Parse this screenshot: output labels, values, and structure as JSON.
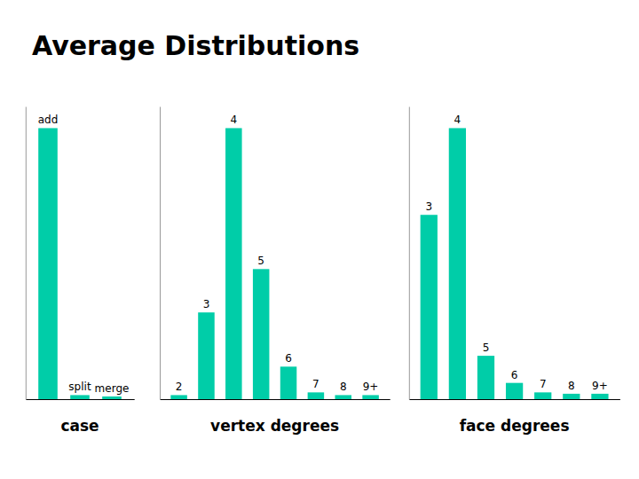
{
  "chart_data": [
    {
      "type": "bar",
      "title": "Average Distributions",
      "xlabel": "case",
      "categories": [
        "add",
        "split",
        "merge"
      ],
      "values": [
        100,
        1.5,
        1.0
      ],
      "color": "#00CDA8",
      "ylim": [
        0,
        108
      ],
      "tick_labels": false
    },
    {
      "type": "bar",
      "xlabel": "vertex degrees",
      "categories": [
        "2",
        "3",
        "4",
        "5",
        "6",
        "7",
        "8",
        "9+"
      ],
      "values": [
        1.5,
        32,
        100,
        48,
        12,
        2.5,
        1.5,
        1.5
      ],
      "color": "#00CDA8",
      "ylim": [
        0,
        108
      ],
      "tick_labels": false
    },
    {
      "type": "bar",
      "xlabel": "face degrees",
      "categories": [
        "3",
        "4",
        "5",
        "6",
        "7",
        "8",
        "9+"
      ],
      "values": [
        68,
        100,
        16,
        6,
        2.5,
        2.0,
        2.0
      ],
      "color": "#00CDA8",
      "ylim": [
        0,
        108
      ],
      "tick_labels": false
    }
  ]
}
